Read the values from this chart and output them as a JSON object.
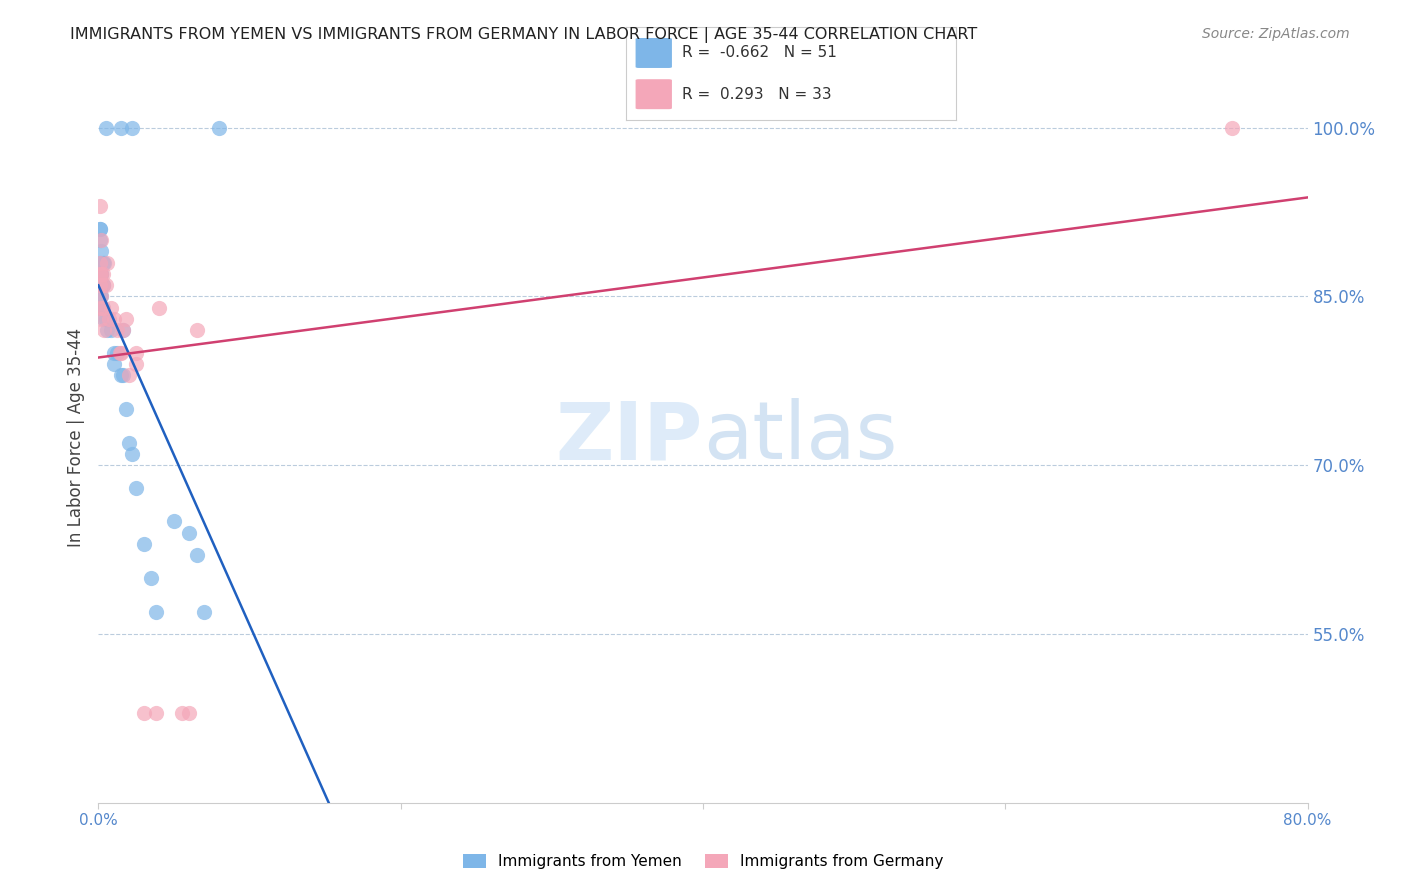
{
  "title": "IMMIGRANTS FROM YEMEN VS IMMIGRANTS FROM GERMANY IN LABOR FORCE | AGE 35-44 CORRELATION CHART",
  "source": "Source: ZipAtlas.com",
  "ylabel": "In Labor Force | Age 35-44",
  "right_yticks": [
    0.55,
    0.7,
    0.85,
    1.0
  ],
  "right_yticklabels": [
    "55.0%",
    "70.0%",
    "85.0%",
    "100.0%"
  ],
  "xlim": [
    0.0,
    0.8
  ],
  "ylim": [
    0.4,
    1.05
  ],
  "yemen_color": "#7EB6E8",
  "germany_color": "#F4A7B9",
  "trend_yemen_color": "#2060C0",
  "trend_germany_color": "#D04070",
  "legend_R_yemen": "-0.662",
  "legend_N_yemen": "51",
  "legend_R_germany": "0.293",
  "legend_N_germany": "33",
  "watermark_zip": "ZIP",
  "watermark_atlas": "atlas",
  "yemen_x": [
    0.001,
    0.002,
    0.003,
    0.001,
    0.002,
    0.001,
    0.003,
    0.001,
    0.004,
    0.002,
    0.001,
    0.001,
    0.001,
    0.002,
    0.001,
    0.001,
    0.002,
    0.001,
    0.001,
    0.003,
    0.001,
    0.001,
    0.001,
    0.002,
    0.003,
    0.005,
    0.001,
    0.006,
    0.004,
    0.008,
    0.01,
    0.01,
    0.012,
    0.015,
    0.016,
    0.016,
    0.018,
    0.02,
    0.022,
    0.025,
    0.005,
    0.015,
    0.022,
    0.03,
    0.035,
    0.038,
    0.05,
    0.06,
    0.065,
    0.07,
    0.08
  ],
  "yemen_y": [
    0.88,
    0.87,
    0.86,
    0.91,
    0.89,
    0.87,
    0.86,
    0.85,
    0.88,
    0.87,
    0.86,
    0.85,
    0.87,
    0.86,
    0.91,
    0.9,
    0.85,
    0.84,
    0.86,
    0.88,
    0.85,
    0.86,
    0.85,
    0.84,
    0.84,
    0.83,
    0.87,
    0.82,
    0.83,
    0.82,
    0.8,
    0.79,
    0.8,
    0.78,
    0.78,
    0.82,
    0.75,
    0.72,
    0.71,
    0.68,
    1.0,
    1.0,
    1.0,
    0.63,
    0.6,
    0.57,
    0.65,
    0.64,
    0.62,
    0.57,
    1.0
  ],
  "germany_x": [
    0.001,
    0.002,
    0.001,
    0.002,
    0.001,
    0.003,
    0.002,
    0.001,
    0.001,
    0.003,
    0.002,
    0.004,
    0.003,
    0.005,
    0.006,
    0.007,
    0.008,
    0.01,
    0.012,
    0.014,
    0.015,
    0.016,
    0.018,
    0.02,
    0.025,
    0.025,
    0.03,
    0.038,
    0.04,
    0.055,
    0.06,
    0.065,
    0.75
  ],
  "germany_y": [
    0.93,
    0.9,
    0.87,
    0.87,
    0.86,
    0.86,
    0.85,
    0.88,
    0.84,
    0.84,
    0.83,
    0.82,
    0.87,
    0.86,
    0.88,
    0.83,
    0.84,
    0.83,
    0.82,
    0.8,
    0.8,
    0.82,
    0.83,
    0.78,
    0.8,
    0.79,
    0.48,
    0.48,
    0.84,
    0.48,
    0.48,
    0.82,
    1.0
  ]
}
